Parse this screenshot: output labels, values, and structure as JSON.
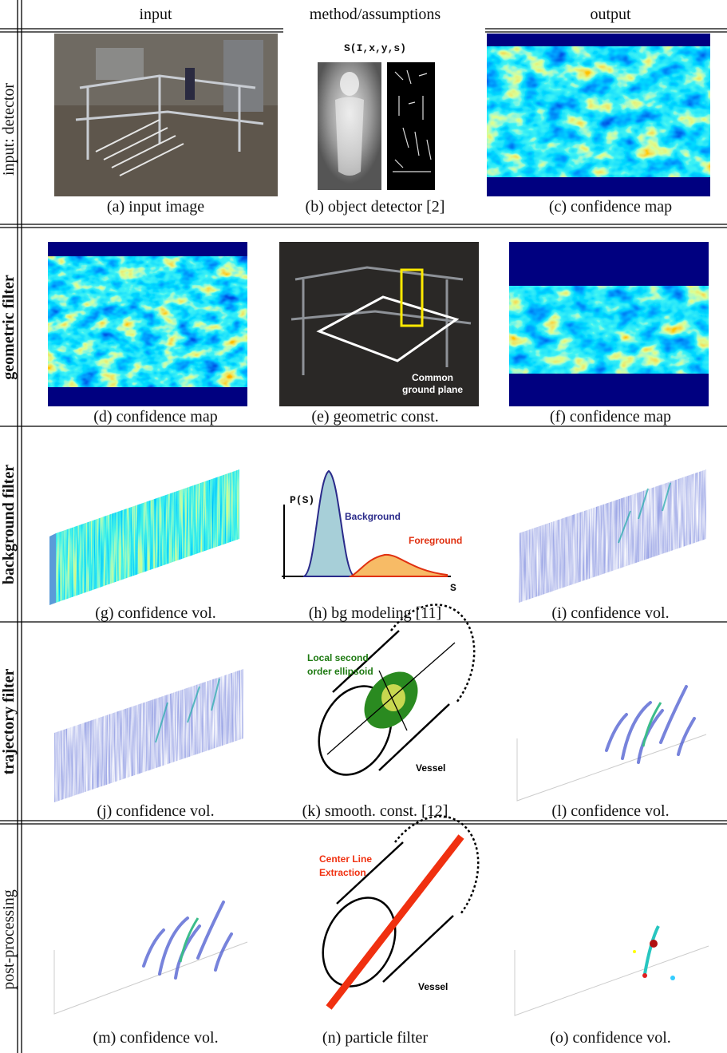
{
  "header": {
    "columns": [
      "input",
      "method/assumptions",
      "output"
    ]
  },
  "rows": [
    {
      "label": "input: detector",
      "captions": [
        "(a) input image",
        "(b) object detector [2]",
        "(c) confidence map"
      ]
    },
    {
      "label": "geometric filter",
      "captions": [
        "(d) confidence map",
        "(e) geometric const.",
        "(f) confidence map"
      ]
    },
    {
      "label": "background filter",
      "captions": [
        "(g) confidence vol.",
        "(h) bg modeling [11]",
        "(i) confidence vol."
      ]
    },
    {
      "label": "trajectory filter",
      "captions": [
        "(j) confidence vol.",
        "(k) smooth. const. [12]",
        "(l) confidence vol."
      ]
    },
    {
      "label": "post-processing",
      "captions": [
        "(m) confidence vol.",
        "(n) particle filter",
        "(o) confidence vol."
      ]
    }
  ],
  "annotations": {
    "detector_formula": "S(I,x,y,s)",
    "ground_plane": [
      "Common",
      "ground plane"
    ],
    "bg_model": {
      "y_axis": "P(S)",
      "background": "Background",
      "foreground": "Foreground",
      "x_axis": "S"
    },
    "smoothness": {
      "ellipsoid": [
        "Local second",
        "order ellipsoid"
      ],
      "vessel": "Vessel"
    },
    "particle": {
      "center_line": [
        "Center Line",
        "Extraction"
      ],
      "vessel": "Vessel"
    }
  }
}
